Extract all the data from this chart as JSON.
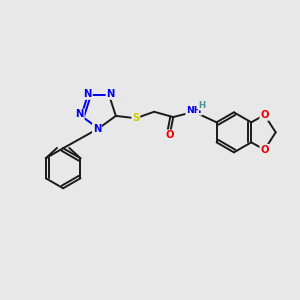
{
  "background_color": "#e8e8e8",
  "atom_colors": {
    "C": "#1a1a1a",
    "N": "#0000ee",
    "O": "#ee0000",
    "S": "#cccc00",
    "H": "#4a9090"
  },
  "bond_color": "#1a1a1a",
  "lw": 1.4,
  "fs": 7.2
}
